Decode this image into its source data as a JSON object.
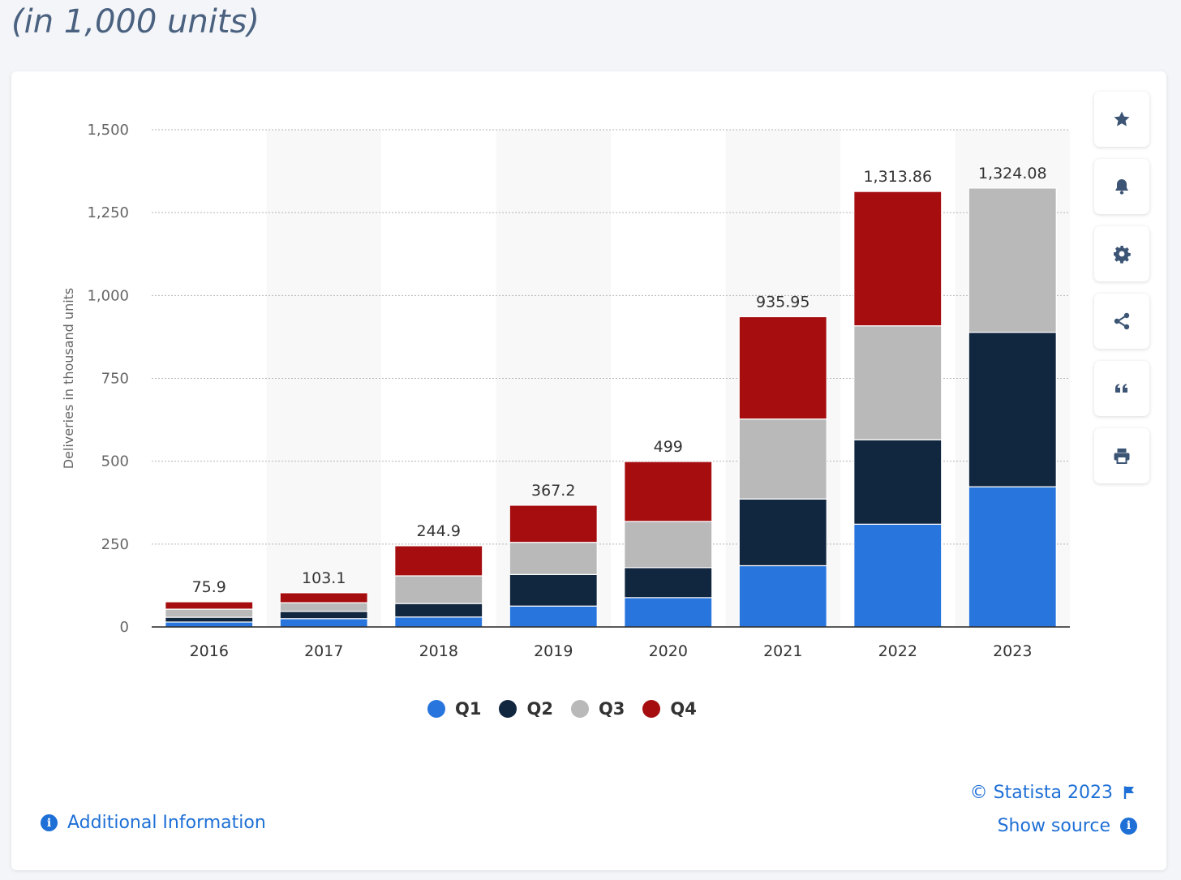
{
  "heading": "(in 1,000 units)",
  "chart_data": {
    "type": "bar",
    "stacked": true,
    "categories": [
      "2016",
      "2017",
      "2018",
      "2019",
      "2020",
      "2021",
      "2022",
      "2023"
    ],
    "series": [
      {
        "name": "Q1",
        "color": "#2876dd",
        "values": [
          14.8,
          25.0,
          30.0,
          63.0,
          88.4,
          184.8,
          310.0,
          422.9
        ]
      },
      {
        "name": "Q2",
        "color": "#11263f",
        "values": [
          14.4,
          22.0,
          40.7,
          95.2,
          90.7,
          201.3,
          254.7,
          466.1
        ]
      },
      {
        "name": "Q3",
        "color": "#b9b9b9",
        "values": [
          24.5,
          26.1,
          83.5,
          97.0,
          139.3,
          241.3,
          343.8,
          435.1
        ]
      },
      {
        "name": "Q4",
        "color": "#a50d0f",
        "values": [
          22.2,
          30.0,
          90.7,
          112.0,
          180.6,
          308.6,
          405.3,
          0
        ]
      }
    ],
    "totals": [
      "75.9",
      "103.1",
      "244.9",
      "367.2",
      "499",
      "935.95",
      "1,313.86",
      "1,324.08"
    ],
    "yticks": [
      "0",
      "250",
      "500",
      "750",
      "1,000",
      "1,250",
      "1,500"
    ],
    "ytick_values": [
      0,
      250,
      500,
      750,
      1000,
      1250,
      1500
    ],
    "ylim": [
      0,
      1500
    ],
    "ylabel": "Deliveries in thousand units",
    "xlabel": "",
    "grid": true,
    "legend_position": "bottom-center"
  },
  "legend": {
    "items": [
      {
        "label": "Q1",
        "color": "#2876dd"
      },
      {
        "label": "Q2",
        "color": "#11263f"
      },
      {
        "label": "Q3",
        "color": "#b9b9b9"
      },
      {
        "label": "Q4",
        "color": "#a50d0f"
      }
    ]
  },
  "tools": [
    "star-icon",
    "bell-icon",
    "gear-icon",
    "share-icon",
    "quote-icon",
    "print-icon"
  ],
  "footer": {
    "copyright": "© Statista 2023",
    "show_source": "Show source",
    "additional_info": "Additional Information",
    "info_glyph": "i"
  },
  "colors": {
    "accent": "#1e6fd6",
    "icon": "#3d5575"
  }
}
